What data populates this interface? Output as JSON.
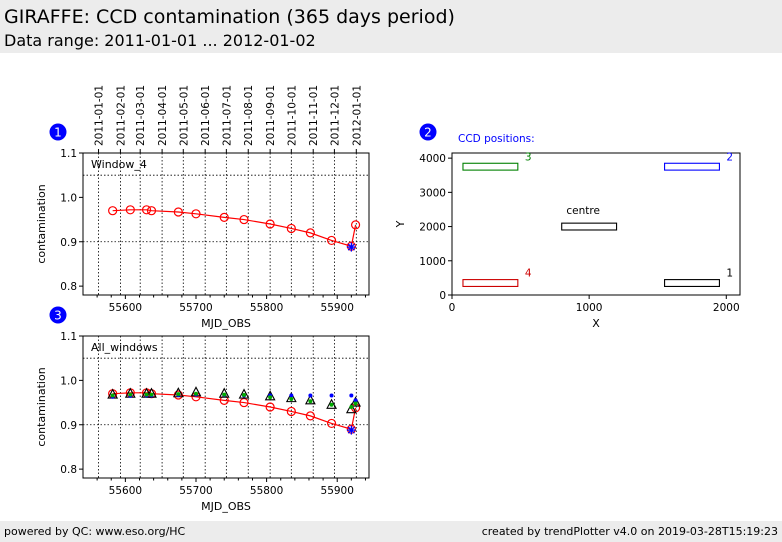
{
  "header": {
    "title": "GIRAFFE: CCD contamination (365 days period)",
    "subtitle": "Data range: 2011-01-01 ... 2012-01-02"
  },
  "footer": {
    "left": "powered by QC: www.eso.org/HC",
    "right": "created by trendPlotter v4.0 on 2019-03-28T15:19:23"
  },
  "chart_data": [
    {
      "panel_number": "1",
      "type": "line",
      "label": "Window_4",
      "xlabel": "MJD_OBS",
      "ylabel": "contamination",
      "xlim": [
        55540,
        55945
      ],
      "ylim": [
        0.78,
        1.1
      ],
      "xticks": [
        55600,
        55700,
        55800,
        55900
      ],
      "yticks": [
        0.8,
        0.9,
        1.0,
        1.1
      ],
      "top_date_ticks": [
        {
          "mjd": 55562,
          "label": "2011-01-01"
        },
        {
          "mjd": 55593,
          "label": "2011-02-01"
        },
        {
          "mjd": 55621,
          "label": "2011-03-01"
        },
        {
          "mjd": 55652,
          "label": "2011-04-01"
        },
        {
          "mjd": 55682,
          "label": "2011-05-01"
        },
        {
          "mjd": 55713,
          "label": "2011-06-01"
        },
        {
          "mjd": 55743,
          "label": "2011-07-01"
        },
        {
          "mjd": 55774,
          "label": "2011-08-01"
        },
        {
          "mjd": 55805,
          "label": "2011-09-01"
        },
        {
          "mjd": 55835,
          "label": "2011-10-01"
        },
        {
          "mjd": 55866,
          "label": "2011-11-01"
        },
        {
          "mjd": 55896,
          "label": "2011-12-01"
        },
        {
          "mjd": 55927,
          "label": "2012-01-01"
        }
      ],
      "hline": 1.05,
      "series": [
        {
          "color": "#ff0000",
          "x": [
            55582,
            55607,
            55630,
            55637,
            55675,
            55700,
            55740,
            55768,
            55805,
            55835,
            55862,
            55892,
            55920,
            55926
          ],
          "y": [
            0.97,
            0.972,
            0.972,
            0.97,
            0.967,
            0.963,
            0.955,
            0.95,
            0.94,
            0.93,
            0.92,
            0.903,
            0.89,
            0.938
          ]
        }
      ],
      "last_point": {
        "x": 55920,
        "y": 0.888,
        "color": "#0000ff"
      }
    },
    {
      "panel_number": "3",
      "type": "line",
      "label": "All_windows",
      "xlabel": "MJD_OBS",
      "ylabel": "contamination",
      "xlim": [
        55540,
        55945
      ],
      "ylim": [
        0.78,
        1.1
      ],
      "xticks": [
        55600,
        55700,
        55800,
        55900
      ],
      "yticks": [
        0.8,
        0.9,
        1.0,
        1.1
      ],
      "hline": 1.05,
      "series": [
        {
          "color": "#ff0000",
          "x": [
            55582,
            55607,
            55630,
            55637,
            55675,
            55700,
            55740,
            55768,
            55805,
            55835,
            55862,
            55892,
            55920,
            55926
          ],
          "y": [
            0.97,
            0.972,
            0.972,
            0.97,
            0.967,
            0.963,
            0.955,
            0.95,
            0.94,
            0.93,
            0.92,
            0.903,
            0.89,
            0.938
          ]
        },
        {
          "color": "#000000",
          "marker": "triangle",
          "x": [
            55582,
            55607,
            55630,
            55637,
            55675,
            55700,
            55740,
            55768,
            55805,
            55835,
            55862,
            55892,
            55920,
            55926
          ],
          "y": [
            0.968,
            0.97,
            0.97,
            0.97,
            0.971,
            0.973,
            0.97,
            0.968,
            0.964,
            0.96,
            0.955,
            0.945,
            0.935,
            0.95
          ]
        },
        {
          "color": "#0000ff",
          "marker": "dot",
          "x": [
            55582,
            55607,
            55630,
            55637,
            55675,
            55700,
            55740,
            55768,
            55805,
            55835,
            55862,
            55892,
            55920,
            55926
          ],
          "y": [
            0.963,
            0.965,
            0.966,
            0.966,
            0.967,
            0.968,
            0.967,
            0.966,
            0.966,
            0.966,
            0.966,
            0.966,
            0.966,
            0.955
          ]
        },
        {
          "color": "#00aa00",
          "marker": "dot",
          "x": [
            55582,
            55607,
            55630,
            55637,
            55675,
            55700,
            55740,
            55768,
            55805,
            55835,
            55862,
            55892,
            55920,
            55926
          ],
          "y": [
            0.966,
            0.968,
            0.968,
            0.968,
            0.969,
            0.97,
            0.968,
            0.967,
            0.962,
            0.958,
            0.953,
            0.945,
            0.94,
            0.948
          ]
        }
      ],
      "last_point": {
        "x": 55920,
        "y": 0.888,
        "color": "#0000ff"
      }
    },
    {
      "panel_number": "2",
      "type": "scatter",
      "annotation": "CCD positions:",
      "xlabel": "X",
      "ylabel": "Y",
      "xlim": [
        0,
        2100
      ],
      "ylim": [
        0,
        4150
      ],
      "xticks": [
        0,
        1000,
        2000
      ],
      "yticks": [
        0,
        1000,
        2000,
        3000,
        4000
      ],
      "boxes": [
        {
          "label": "1",
          "x0": 1550,
          "x1": 1950,
          "y0": 250,
          "y1": 450,
          "color": "#000000"
        },
        {
          "label": "2",
          "x0": 1550,
          "x1": 1950,
          "y0": 3650,
          "y1": 3850,
          "color": "#0000ff"
        },
        {
          "label": "3",
          "x0": 80,
          "x1": 480,
          "y0": 3650,
          "y1": 3850,
          "color": "#008000"
        },
        {
          "label": "4",
          "x0": 80,
          "x1": 480,
          "y0": 250,
          "y1": 450,
          "color": "#cc0000"
        },
        {
          "label": "centre",
          "x0": 800,
          "x1": 1200,
          "y0": 1900,
          "y1": 2100,
          "color": "#000000"
        }
      ]
    }
  ]
}
